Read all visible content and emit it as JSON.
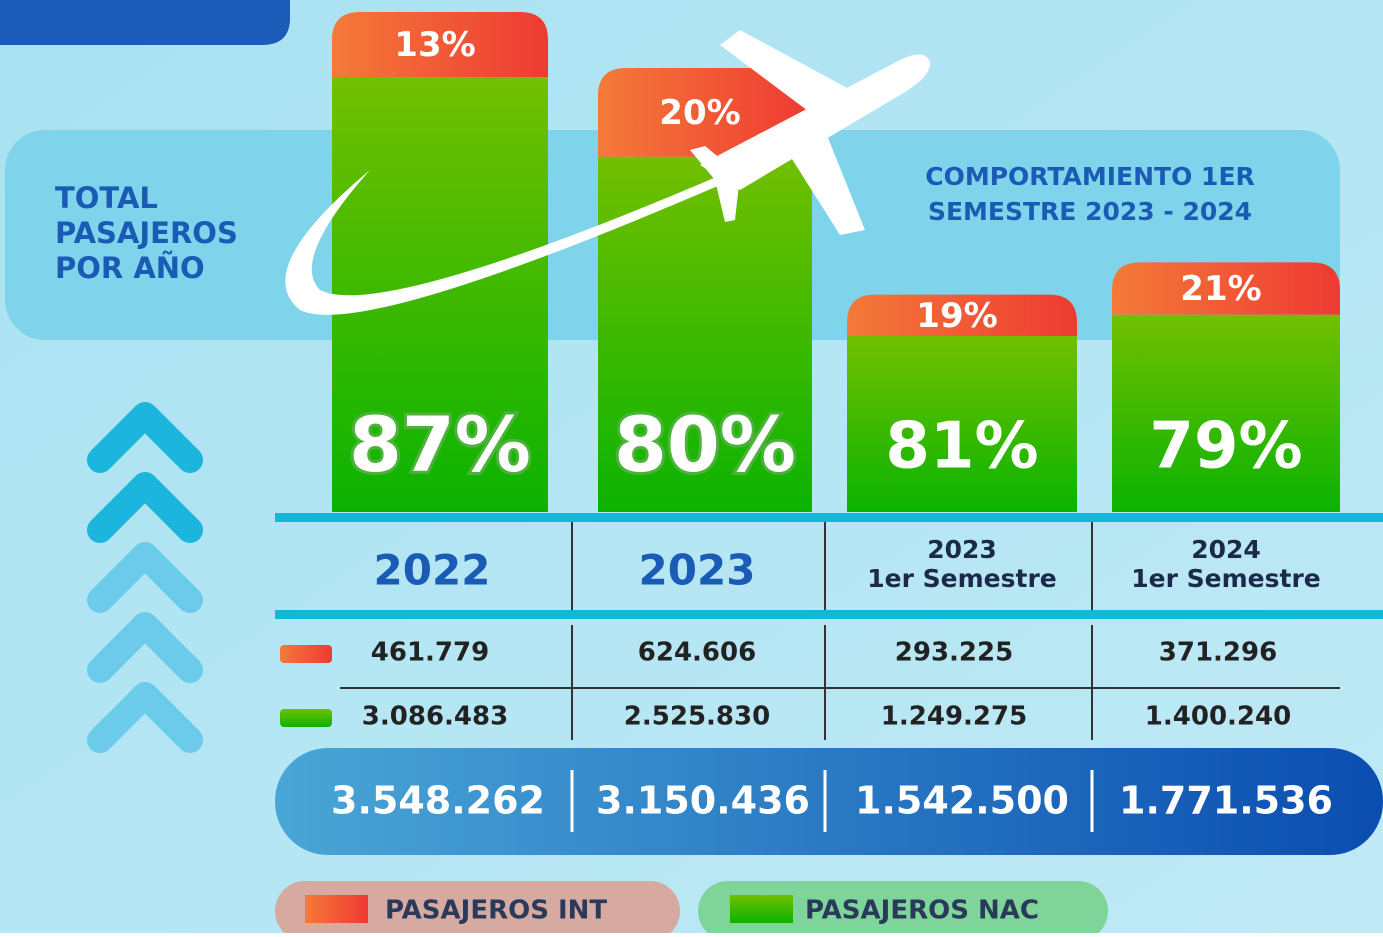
{
  "title": [
    "TOTAL",
    "PASAJEROS",
    "POR AÑO"
  ],
  "subtitle": [
    "COMPORTAMIENTO 1ER",
    "SEMESTRE  2023 - 2024"
  ],
  "columns": [
    {
      "heading": [
        "2022"
      ],
      "pct_int": {
        "value": 13,
        "label": "13%"
      },
      "pct_nac": {
        "value": 87,
        "label": "87%"
      },
      "int": "461.779",
      "nac": "3.086.483",
      "total": {
        "value": 3548262,
        "label": "3.548.262"
      }
    },
    {
      "heading": [
        "2023"
      ],
      "pct_int": {
        "value": 20,
        "label": "20%"
      },
      "pct_nac": {
        "value": 80,
        "label": "80%"
      },
      "int": "624.606",
      "nac": "2.525.830",
      "total": {
        "value": 3150436,
        "label": "3.150.436"
      }
    },
    {
      "heading": [
        "2023",
        "1er Semestre"
      ],
      "pct_int": {
        "value": 19,
        "label": "19%"
      },
      "pct_nac": {
        "value": 81,
        "label": "81%"
      },
      "int": "293.225",
      "nac": "1.249.275",
      "total": {
        "value": 1542500,
        "label": "1.542.500"
      }
    },
    {
      "heading": [
        "2024",
        "1er Semestre"
      ],
      "pct_int": {
        "value": 21,
        "label": "21%"
      },
      "pct_nac": {
        "value": 79,
        "label": "79%"
      },
      "int": "371.296",
      "nac": "1.400.240",
      "total": {
        "value": 1771536,
        "label": "1.771.536"
      }
    }
  ],
  "legend": [
    "PASAJEROS INT",
    "PASAJEROS NAC"
  ]
}
